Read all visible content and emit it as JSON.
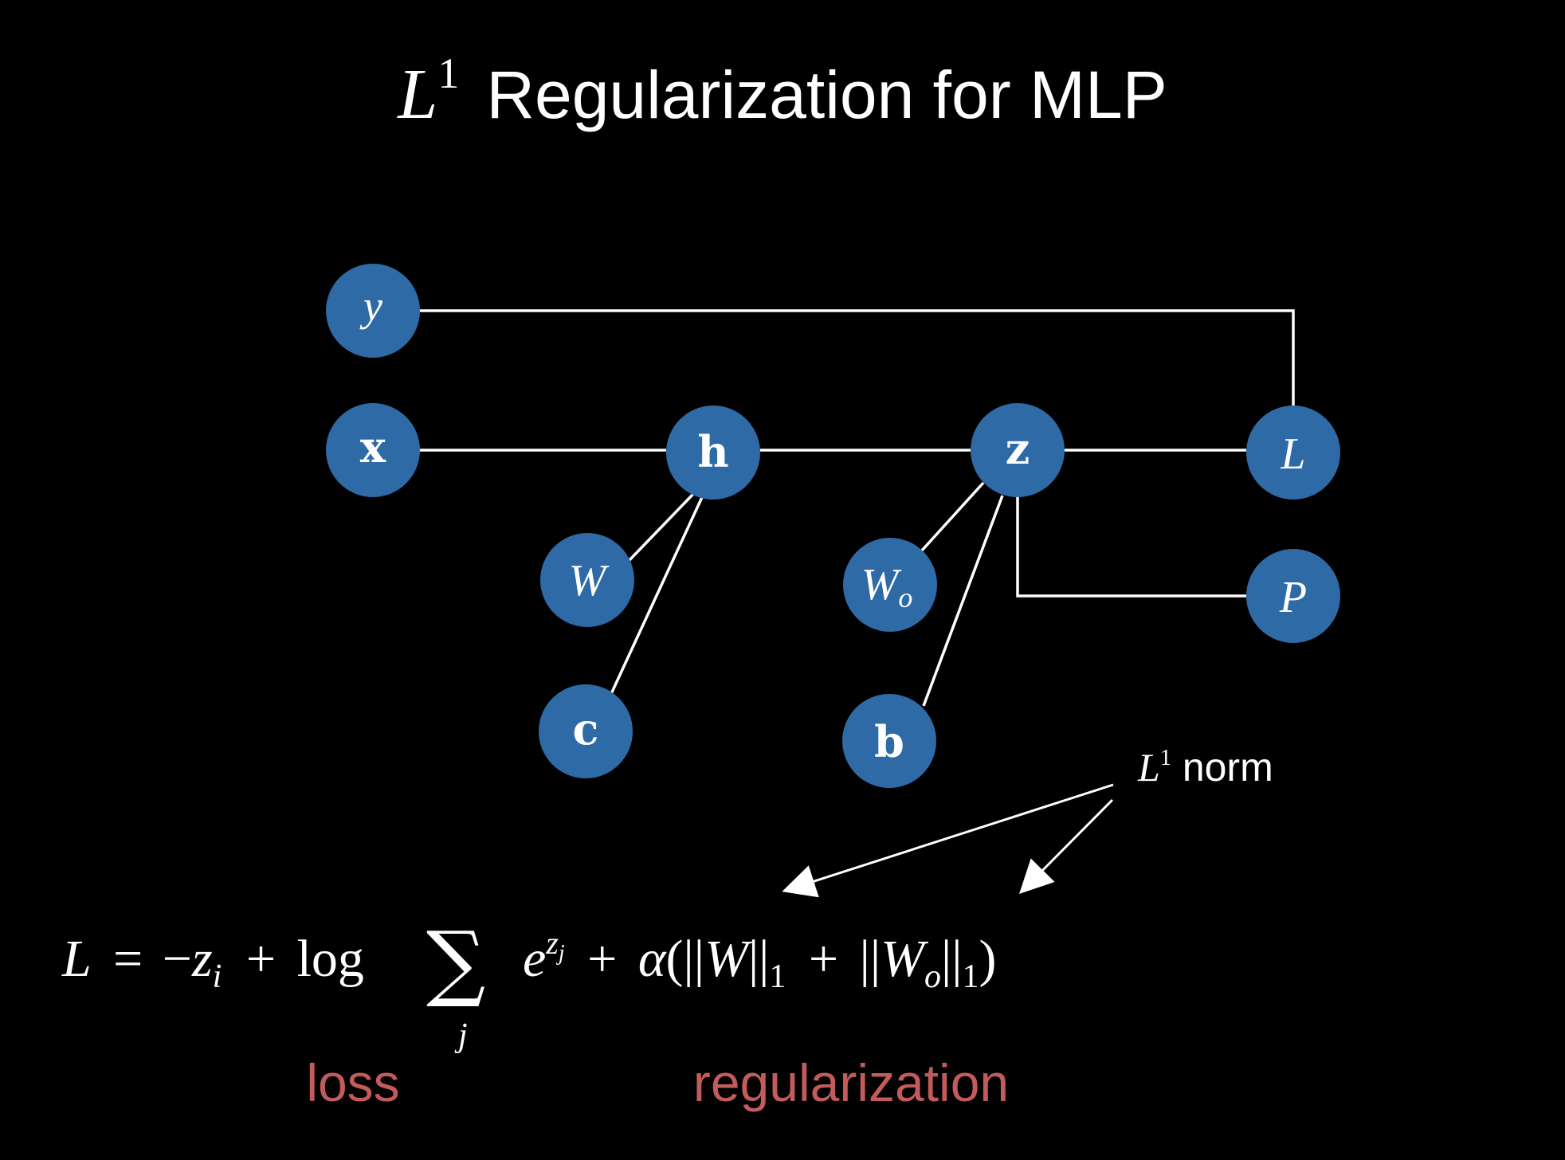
{
  "title": {
    "symbol": "L",
    "superscript": "1",
    "text": "Regularization for MLP"
  },
  "colors": {
    "background": "#000000",
    "node_fill": "#2e6aa6",
    "line": "#ffffff",
    "text": "#ffffff",
    "accent_text": "#c25b5b"
  },
  "nodes": [
    {
      "id": "y",
      "label": "y",
      "style": "italic"
    },
    {
      "id": "x",
      "label": "x",
      "style": "bold"
    },
    {
      "id": "h",
      "label": "h",
      "style": "bold"
    },
    {
      "id": "z",
      "label": "z",
      "style": "bold"
    },
    {
      "id": "L",
      "label": "L",
      "style": "italic"
    },
    {
      "id": "W",
      "label": "W",
      "style": "italic"
    },
    {
      "id": "c",
      "label": "c",
      "style": "bold"
    },
    {
      "id": "Wo",
      "label": "W",
      "subscript": "o",
      "style": "italic"
    },
    {
      "id": "b",
      "label": "b",
      "style": "bold"
    },
    {
      "id": "P",
      "label": "P",
      "style": "italic"
    }
  ],
  "edges": [
    [
      "y",
      "L"
    ],
    [
      "x",
      "h"
    ],
    [
      "h",
      "z"
    ],
    [
      "z",
      "L"
    ],
    [
      "h",
      "W"
    ],
    [
      "h",
      "c"
    ],
    [
      "z",
      "Wo"
    ],
    [
      "z",
      "b"
    ],
    [
      "z",
      "P"
    ]
  ],
  "annotation": {
    "symbol": "L",
    "superscript": "1",
    "text": "norm"
  },
  "formula": {
    "lhs": "L",
    "equals": "=",
    "minus": "−",
    "z": "z",
    "z_sub": "i",
    "plus": "+",
    "log": "log",
    "sum": "∑",
    "sum_index": "j",
    "e": "e",
    "exp_z": "z",
    "exp_sub": "j",
    "alpha": "α",
    "open_paren": "(",
    "norm_bars": "||",
    "W": "W",
    "norm_sub": "1",
    "Wo_sub": "o",
    "close_paren": ")"
  },
  "labels": {
    "loss": "loss",
    "regularization": "regularization"
  }
}
